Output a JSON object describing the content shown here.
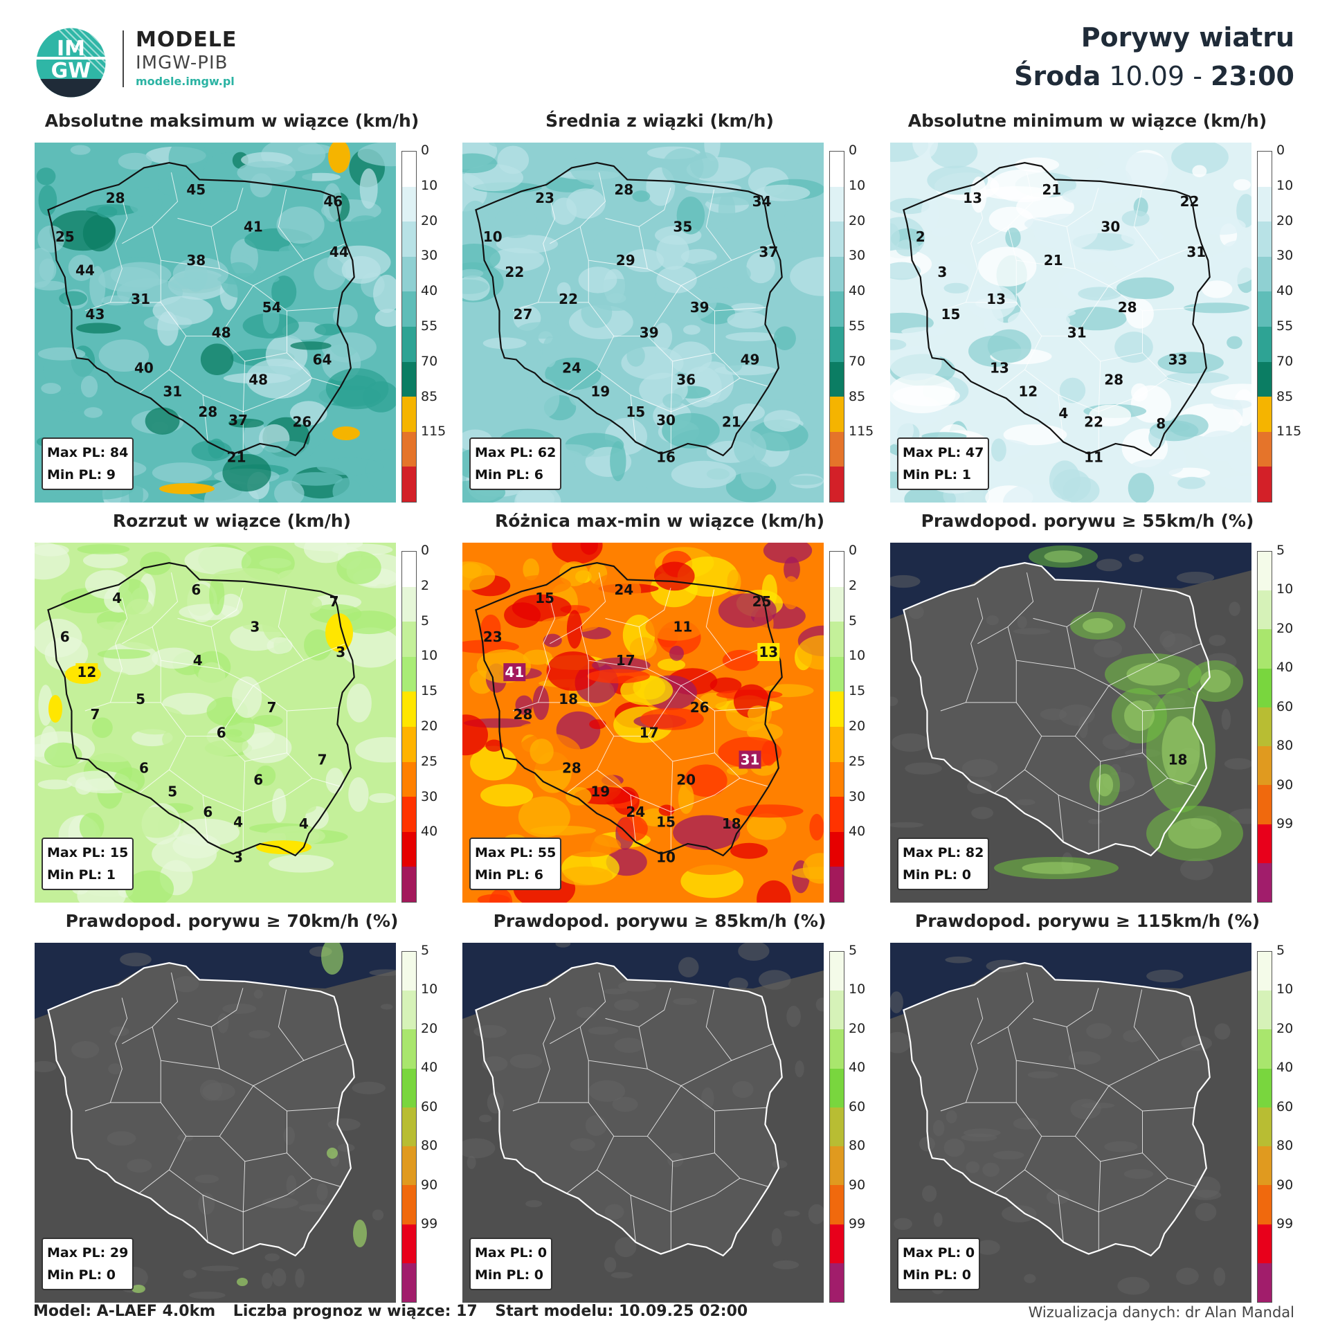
{
  "header": {
    "brand_name": "MODELE",
    "brand_sub": "IMGW-PIB",
    "brand_url": "modele.imgw.pl",
    "logo_text_top": "IM",
    "logo_text_bottom": "GW",
    "logo_icon": "imgw-logo",
    "title": "Porywy wiatru",
    "day": "Środa",
    "date": "10.09",
    "separator": "-",
    "time": "23:00"
  },
  "footer": {
    "model": "Model: A-LAEF 4.0km",
    "members": "Liczba prognoz w wiązce: 17",
    "start": "Start modelu: 10.09.25  02:00",
    "credit": "Wizualizacja danych: dr Alan Mandal"
  },
  "colors": {
    "teal_scale": [
      "#ffffff",
      "#dff2f5",
      "#b8e2e6",
      "#8fd0d2",
      "#5fbdb8",
      "#2ea394",
      "#0b7d63",
      "#f5b400",
      "#e5742a",
      "#d32028"
    ],
    "spread_scale": [
      "#ffffff",
      "#e6f7d8",
      "#c4f09a",
      "#a9ec76",
      "#ffe600",
      "#ffb300",
      "#ff8000",
      "#ff3300",
      "#e60000",
      "#a3195b"
    ],
    "prob_scale": [
      "#f4fbe9",
      "#d6f2b8",
      "#a9e66d",
      "#79d63e",
      "#b8bd33",
      "#e09a1f",
      "#f0690d",
      "#e8001b",
      "#a11d6b"
    ],
    "sea": "#1d2a48",
    "land_gray": "#585858"
  },
  "panels": [
    {
      "id": "abs-max",
      "title": "Absolutne maksimum w wiązce (km/h)",
      "scale": "teal",
      "ticks": [
        "0",
        "10",
        "20",
        "30",
        "40",
        "55",
        "70",
        "85",
        "115"
      ],
      "max": "Max PL: 84",
      "min": "Min PL: 9",
      "labels": [
        {
          "v": "28",
          "x": 96,
          "y": 66
        },
        {
          "v": "45",
          "x": 192,
          "y": 56
        },
        {
          "v": "46",
          "x": 355,
          "y": 70
        },
        {
          "v": "25",
          "x": 36,
          "y": 112
        },
        {
          "v": "41",
          "x": 260,
          "y": 100
        },
        {
          "v": "44",
          "x": 362,
          "y": 130
        },
        {
          "v": "44",
          "x": 60,
          "y": 152
        },
        {
          "v": "38",
          "x": 192,
          "y": 140
        },
        {
          "v": "31",
          "x": 126,
          "y": 186
        },
        {
          "v": "54",
          "x": 282,
          "y": 196
        },
        {
          "v": "43",
          "x": 72,
          "y": 204
        },
        {
          "v": "48",
          "x": 222,
          "y": 226
        },
        {
          "v": "64",
          "x": 342,
          "y": 258
        },
        {
          "v": "40",
          "x": 130,
          "y": 268
        },
        {
          "v": "48",
          "x": 266,
          "y": 282
        },
        {
          "v": "31",
          "x": 164,
          "y": 296
        },
        {
          "v": "28",
          "x": 206,
          "y": 320
        },
        {
          "v": "37",
          "x": 242,
          "y": 330
        },
        {
          "v": "26",
          "x": 318,
          "y": 332
        },
        {
          "v": "21",
          "x": 240,
          "y": 374
        }
      ]
    },
    {
      "id": "mean",
      "title": "Średnia z wiązki (km/h)",
      "scale": "teal",
      "ticks": [
        "0",
        "10",
        "20",
        "30",
        "40",
        "55",
        "70",
        "85",
        "115"
      ],
      "max": "Max PL: 62",
      "min": "Min PL: 6",
      "labels": [
        {
          "v": "28",
          "x": 192,
          "y": 56
        },
        {
          "v": "23",
          "x": 98,
          "y": 66
        },
        {
          "v": "34",
          "x": 356,
          "y": 70
        },
        {
          "v": "10",
          "x": 36,
          "y": 112
        },
        {
          "v": "35",
          "x": 262,
          "y": 100
        },
        {
          "v": "37",
          "x": 364,
          "y": 130
        },
        {
          "v": "22",
          "x": 62,
          "y": 154
        },
        {
          "v": "29",
          "x": 194,
          "y": 140
        },
        {
          "v": "22",
          "x": 126,
          "y": 186
        },
        {
          "v": "39",
          "x": 282,
          "y": 196
        },
        {
          "v": "27",
          "x": 72,
          "y": 204
        },
        {
          "v": "39",
          "x": 222,
          "y": 226
        },
        {
          "v": "49",
          "x": 342,
          "y": 258
        },
        {
          "v": "24",
          "x": 130,
          "y": 268
        },
        {
          "v": "36",
          "x": 266,
          "y": 282
        },
        {
          "v": "19",
          "x": 164,
          "y": 296
        },
        {
          "v": "15",
          "x": 206,
          "y": 320
        },
        {
          "v": "30",
          "x": 242,
          "y": 330
        },
        {
          "v": "21",
          "x": 320,
          "y": 332
        },
        {
          "v": "16",
          "x": 242,
          "y": 374
        }
      ]
    },
    {
      "id": "abs-min",
      "title": "Absolutne minimum w wiązce (km/h)",
      "scale": "teal",
      "ticks": [
        "0",
        "10",
        "20",
        "30",
        "40",
        "55",
        "70",
        "85",
        "115"
      ],
      "max": "Max PL: 47",
      "min": "Min PL: 1",
      "labels": [
        {
          "v": "21",
          "x": 192,
          "y": 56
        },
        {
          "v": "13",
          "x": 98,
          "y": 66
        },
        {
          "v": "22",
          "x": 356,
          "y": 70
        },
        {
          "v": "2",
          "x": 36,
          "y": 112
        },
        {
          "v": "30",
          "x": 262,
          "y": 100
        },
        {
          "v": "31",
          "x": 364,
          "y": 130
        },
        {
          "v": "3",
          "x": 62,
          "y": 154
        },
        {
          "v": "21",
          "x": 194,
          "y": 140
        },
        {
          "v": "13",
          "x": 126,
          "y": 186
        },
        {
          "v": "28",
          "x": 282,
          "y": 196
        },
        {
          "v": "15",
          "x": 72,
          "y": 204
        },
        {
          "v": "31",
          "x": 222,
          "y": 226
        },
        {
          "v": "33",
          "x": 342,
          "y": 258
        },
        {
          "v": "13",
          "x": 130,
          "y": 268
        },
        {
          "v": "28",
          "x": 266,
          "y": 282
        },
        {
          "v": "12",
          "x": 164,
          "y": 296
        },
        {
          "v": "4",
          "x": 206,
          "y": 322
        },
        {
          "v": "22",
          "x": 242,
          "y": 332
        },
        {
          "v": "8",
          "x": 322,
          "y": 334
        },
        {
          "v": "11",
          "x": 242,
          "y": 374
        }
      ]
    },
    {
      "id": "spread",
      "title": "Rozrzut w wiązce (km/h)",
      "scale": "spread",
      "ticks": [
        "0",
        "2",
        "5",
        "10",
        "15",
        "20",
        "25",
        "30",
        "40"
      ],
      "max": "Max PL: 15",
      "min": "Min PL: 1",
      "labels": [
        {
          "v": "6",
          "x": 192,
          "y": 56
        },
        {
          "v": "4",
          "x": 98,
          "y": 66
        },
        {
          "v": "7",
          "x": 356,
          "y": 70
        },
        {
          "v": "6",
          "x": 36,
          "y": 112
        },
        {
          "v": "3",
          "x": 262,
          "y": 100
        },
        {
          "v": "3",
          "x": 364,
          "y": 130
        },
        {
          "v": "12",
          "x": 62,
          "y": 154
        },
        {
          "v": "4",
          "x": 194,
          "y": 140
        },
        {
          "v": "5",
          "x": 126,
          "y": 186
        },
        {
          "v": "7",
          "x": 282,
          "y": 196
        },
        {
          "v": "7",
          "x": 72,
          "y": 204
        },
        {
          "v": "6",
          "x": 222,
          "y": 226
        },
        {
          "v": "7",
          "x": 342,
          "y": 258
        },
        {
          "v": "6",
          "x": 130,
          "y": 268
        },
        {
          "v": "6",
          "x": 266,
          "y": 282
        },
        {
          "v": "5",
          "x": 164,
          "y": 296
        },
        {
          "v": "6",
          "x": 206,
          "y": 320
        },
        {
          "v": "4",
          "x": 242,
          "y": 332
        },
        {
          "v": "4",
          "x": 320,
          "y": 334
        },
        {
          "v": "3",
          "x": 242,
          "y": 374
        }
      ]
    },
    {
      "id": "range",
      "title": "Różnica max-min w wiązce (km/h)",
      "scale": "spread",
      "ticks": [
        "0",
        "2",
        "5",
        "10",
        "15",
        "20",
        "25",
        "30",
        "40"
      ],
      "max": "Max PL: 55",
      "min": "Min PL: 6",
      "labels": [
        {
          "v": "24",
          "x": 192,
          "y": 56
        },
        {
          "v": "15",
          "x": 98,
          "y": 66
        },
        {
          "v": "25",
          "x": 356,
          "y": 70
        },
        {
          "v": "23",
          "x": 36,
          "y": 112
        },
        {
          "v": "11",
          "x": 262,
          "y": 100
        },
        {
          "v": "13",
          "x": 364,
          "y": 130
        },
        {
          "v": "41",
          "x": 62,
          "y": 154
        },
        {
          "v": "17",
          "x": 194,
          "y": 140
        },
        {
          "v": "18",
          "x": 126,
          "y": 186
        },
        {
          "v": "26",
          "x": 282,
          "y": 196
        },
        {
          "v": "28",
          "x": 72,
          "y": 204
        },
        {
          "v": "17",
          "x": 222,
          "y": 226
        },
        {
          "v": "31",
          "x": 342,
          "y": 258
        },
        {
          "v": "28",
          "x": 130,
          "y": 268
        },
        {
          "v": "20",
          "x": 266,
          "y": 282
        },
        {
          "v": "19",
          "x": 164,
          "y": 296
        },
        {
          "v": "24",
          "x": 206,
          "y": 320
        },
        {
          "v": "15",
          "x": 242,
          "y": 332
        },
        {
          "v": "18",
          "x": 320,
          "y": 334
        },
        {
          "v": "10",
          "x": 242,
          "y": 374
        }
      ]
    },
    {
      "id": "prob55",
      "title": "Prawdopod. porywu ≥ 55km/h (%)",
      "scale": "prob",
      "ticks": [
        "5",
        "10",
        "20",
        "40",
        "60",
        "80",
        "90",
        "99"
      ],
      "max": "Max PL: 82",
      "min": "Min PL: 0",
      "labels": [
        {
          "v": "18",
          "x": 342,
          "y": 258
        }
      ]
    },
    {
      "id": "prob70",
      "title": "Prawdopod. porywu ≥ 70km/h (%)",
      "scale": "prob",
      "ticks": [
        "5",
        "10",
        "20",
        "40",
        "60",
        "80",
        "90",
        "99"
      ],
      "max": "Max PL: 29",
      "min": "Min PL: 0",
      "labels": []
    },
    {
      "id": "prob85",
      "title": "Prawdopod. porywu ≥ 85km/h (%)",
      "scale": "prob",
      "ticks": [
        "5",
        "10",
        "20",
        "40",
        "60",
        "80",
        "90",
        "99"
      ],
      "max": "Max PL: 0",
      "min": "Min PL: 0",
      "labels": []
    },
    {
      "id": "prob115",
      "title": "Prawdopod. porywu ≥ 115km/h (%)",
      "scale": "prob",
      "ticks": [
        "5",
        "10",
        "20",
        "40",
        "60",
        "80",
        "90",
        "99"
      ],
      "max": "Max PL: 0",
      "min": "Min PL: 0",
      "labels": []
    }
  ]
}
